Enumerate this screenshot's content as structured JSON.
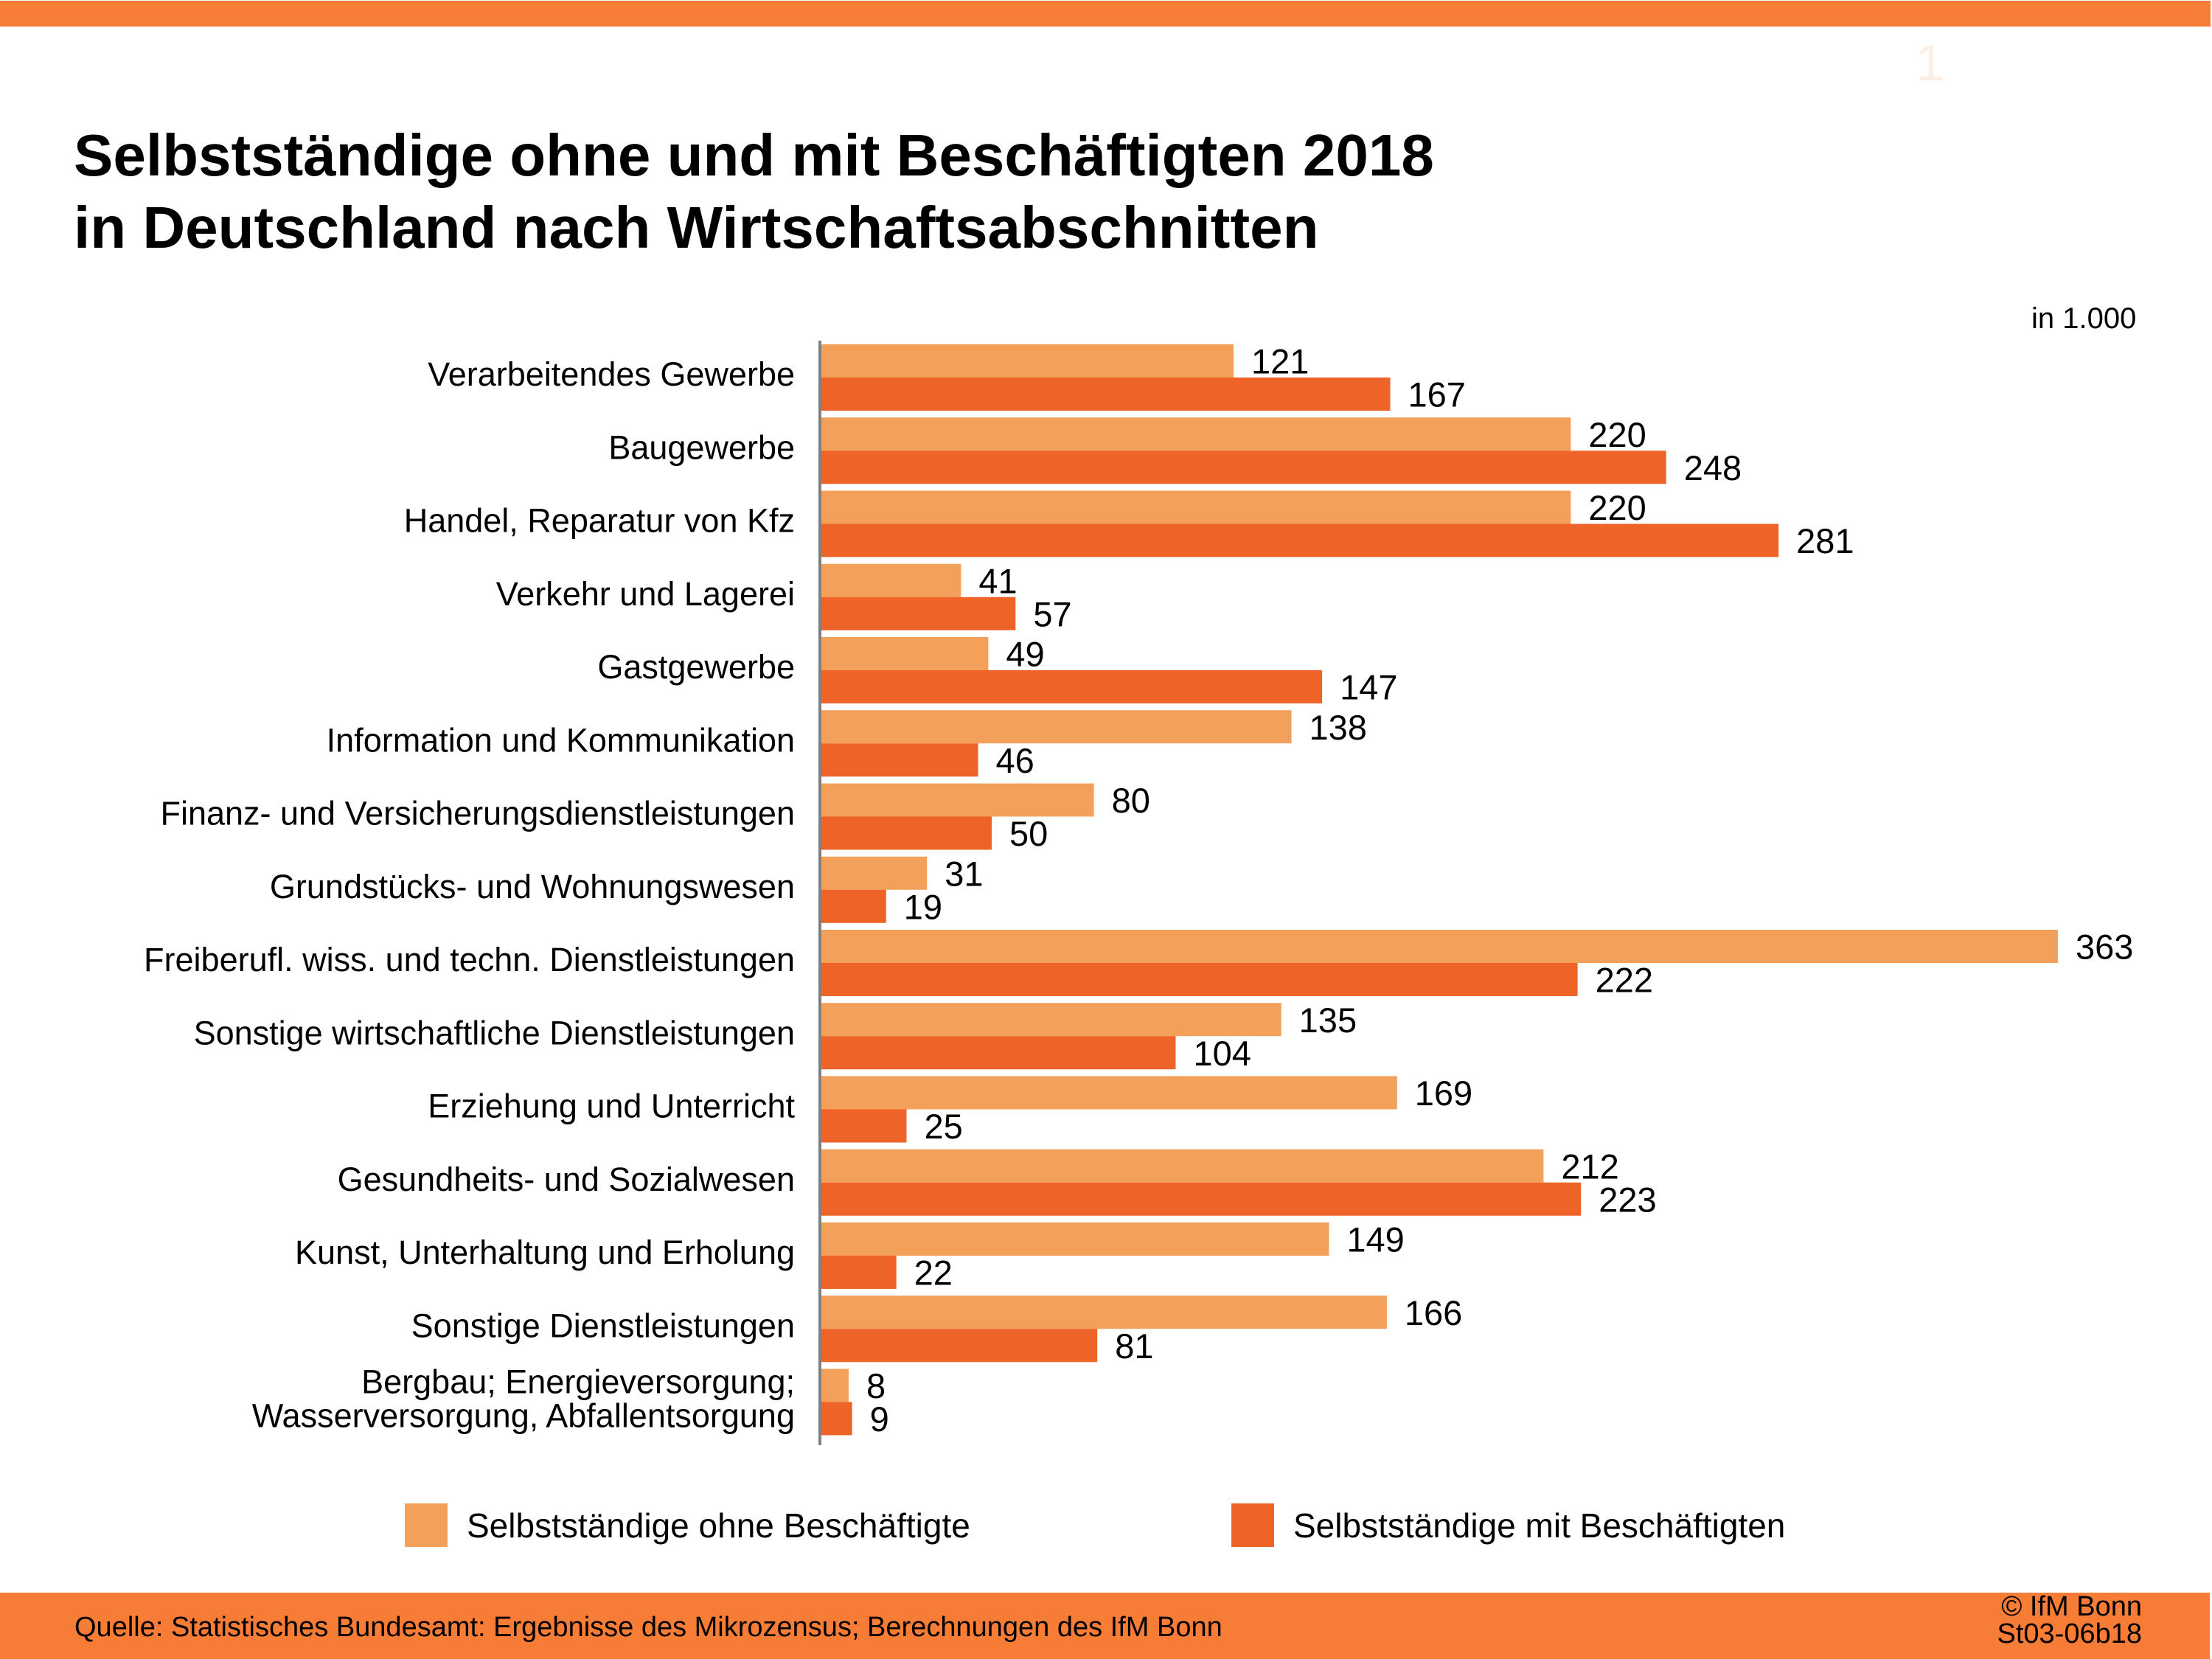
{
  "page_number": "1",
  "title": {
    "line1": "Selbstständige ohne und mit Beschäftigten 2018",
    "line2": "in Deutschland nach Wirtschaftsabschnitten"
  },
  "unit_label": "in 1.000",
  "colors": {
    "band": "#F77D37",
    "ohne": "#F3A15A",
    "mit": "#EE6428",
    "axis": "#808080"
  },
  "chart_data": {
    "type": "bar",
    "orientation": "horizontal",
    "title": "Selbstständige ohne und mit Beschäftigten 2018 in Deutschland nach Wirtschaftsabschnitten",
    "unit": "in 1.000",
    "xlabel": "",
    "ylabel": "",
    "xlim": [
      0,
      363
    ],
    "grid": false,
    "legend_position": "bottom",
    "categories": [
      [
        "Verarbeitendes Gewerbe"
      ],
      [
        "Baugewerbe"
      ],
      [
        "Handel, Reparatur von Kfz"
      ],
      [
        "Verkehr und Lagerei"
      ],
      [
        "Gastgewerbe"
      ],
      [
        "Information und Kommunikation"
      ],
      [
        "Finanz- und Versicherungsdienstleistungen"
      ],
      [
        "Grundstücks- und Wohnungswesen"
      ],
      [
        "Freiberufl. wiss. und techn. Dienstleistungen"
      ],
      [
        "Sonstige wirtschaftliche Dienstleistungen"
      ],
      [
        "Erziehung und Unterricht"
      ],
      [
        "Gesundheits- und Sozialwesen"
      ],
      [
        "Kunst, Unterhaltung und Erholung"
      ],
      [
        "Sonstige Dienstleistungen"
      ],
      [
        "Bergbau; Energieversorgung;",
        "Wasserversorgung, Abfallentsorgung"
      ]
    ],
    "series": [
      {
        "name": "Selbstständige ohne Beschäftigte",
        "color": "#F3A15A",
        "values": [
          121,
          220,
          220,
          41,
          49,
          138,
          80,
          31,
          363,
          135,
          169,
          212,
          149,
          166,
          8
        ]
      },
      {
        "name": "Selbstständige mit Beschäftigten",
        "color": "#EE6428",
        "values": [
          167,
          248,
          281,
          57,
          147,
          46,
          50,
          19,
          222,
          104,
          25,
          223,
          22,
          81,
          9
        ]
      }
    ]
  },
  "legend": [
    {
      "label": "Selbstständige ohne Beschäftigte",
      "color": "#F3A15A"
    },
    {
      "label": "Selbstständige mit Beschäftigten",
      "color": "#EE6428"
    }
  ],
  "footer": {
    "source": "Quelle: Statistisches Bundesamt: Ergebnisse des Mikrozensus; Berechnungen des IfM Bonn",
    "copyright": "© IfM Bonn",
    "code": "St03-06b18"
  }
}
